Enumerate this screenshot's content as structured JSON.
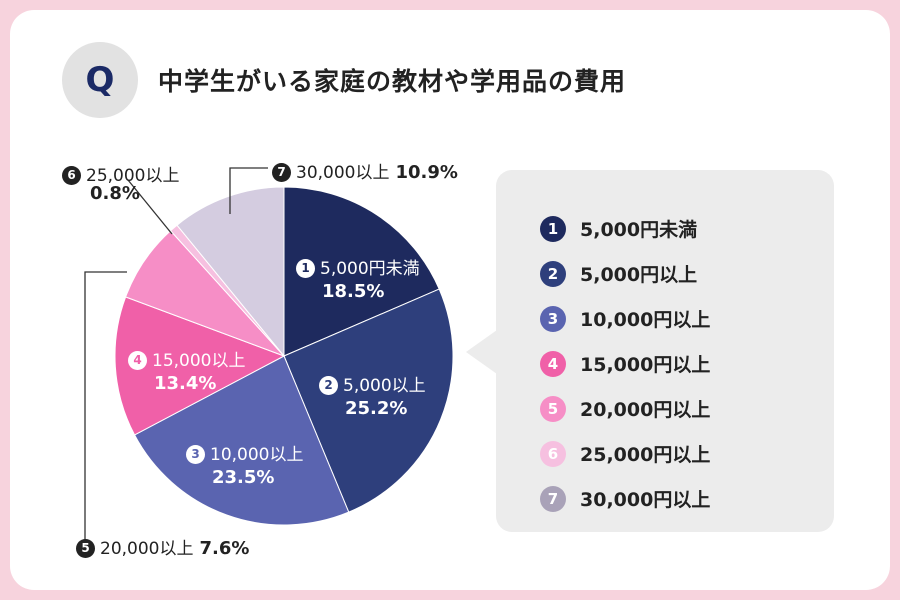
{
  "header": {
    "badge": "Q",
    "title": "中学生がいる家庭の教材や学用品の費用"
  },
  "colors": {
    "background": "#f7d3dd",
    "card": "#ffffff",
    "legend_box": "#ececec"
  },
  "chart_data": {
    "type": "pie",
    "title": "中学生がいる家庭の教材や学用品の費用",
    "unit": "%",
    "start": "12 o'clock, clockwise",
    "slices": [
      {
        "no": "1",
        "label": "5,000円未満",
        "value": 18.5,
        "value_text": "18.5%",
        "color": "#1e2a5e"
      },
      {
        "no": "2",
        "label": "5,000円以上",
        "value": 25.2,
        "value_text": "25.2%",
        "color": "#2e3f7c"
      },
      {
        "no": "3",
        "label": "10,000円以上",
        "value": 23.5,
        "value_text": "23.5%",
        "color": "#5a64b0"
      },
      {
        "no": "4",
        "label": "15,000円以上",
        "value": 13.4,
        "value_text": "13.4%",
        "color": "#f060a8"
      },
      {
        "no": "5",
        "label": "20,000円以上",
        "value": 7.6,
        "value_text": "7.6%",
        "color": "#f68ec6"
      },
      {
        "no": "6",
        "label": "25,000円以上",
        "value": 0.8,
        "value_text": "0.8%",
        "color": "#f6c0e0"
      },
      {
        "no": "7",
        "label": "30,000以上",
        "value": 10.9,
        "value_text": "10.9%",
        "color": "#d4cce0"
      }
    ],
    "pie_labels": {
      "s1": "5,000円未満",
      "s2": "5,000以上",
      "s3": "10,000以上",
      "s4": "15,000以上",
      "s5": "20,000以上",
      "s6": "25,000以上",
      "s7": "30,000以上"
    },
    "legend": [
      {
        "no": "1",
        "label": "5,000円未満",
        "color": "#1e2a5e"
      },
      {
        "no": "2",
        "label": "5,000円以上",
        "color": "#2e3f7c"
      },
      {
        "no": "3",
        "label": "10,000円以上",
        "color": "#5a64b0"
      },
      {
        "no": "4",
        "label": "15,000円以上",
        "color": "#f060a8"
      },
      {
        "no": "5",
        "label": "20,000円以上",
        "color": "#f68ec6"
      },
      {
        "no": "6",
        "label": "25,000円以上",
        "color": "#f6c0e0"
      },
      {
        "no": "7",
        "label": "30,000円以上",
        "color": "#a9a2b8"
      }
    ]
  }
}
